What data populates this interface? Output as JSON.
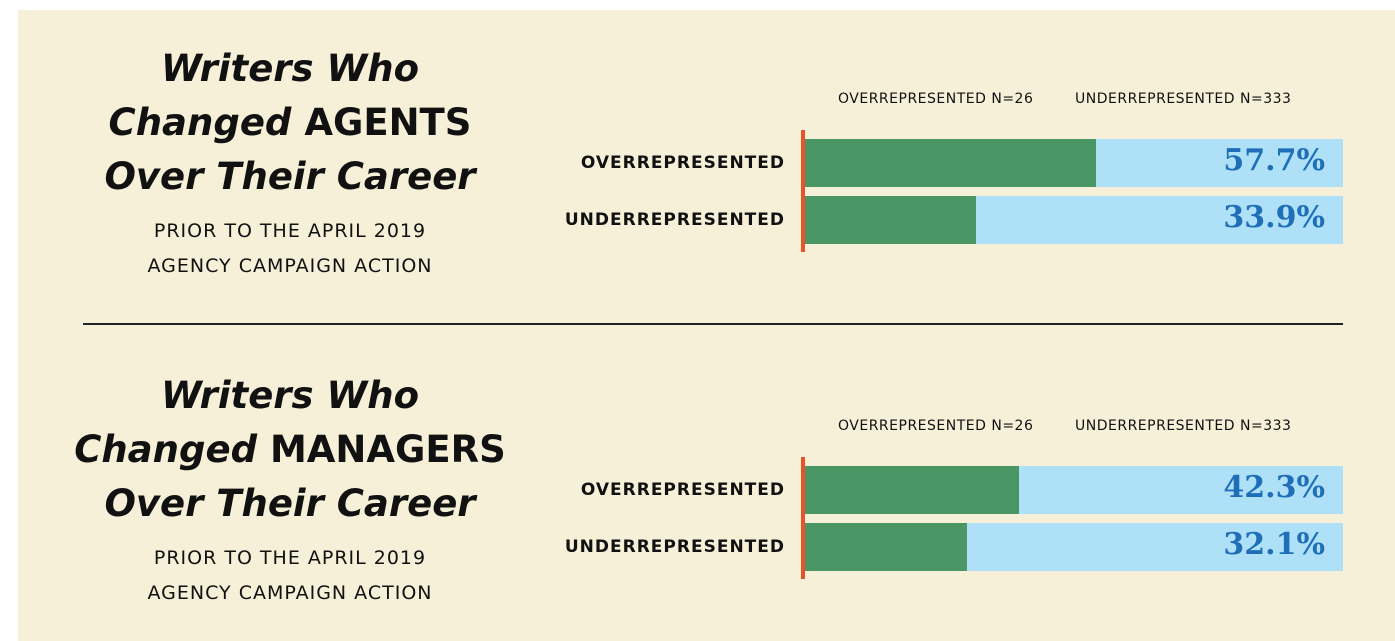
{
  "chart_data": [
    {
      "type": "hbar",
      "title": [
        "Writers Who",
        "Changed",
        "AGENTS",
        "Over Their Career"
      ],
      "subtitle": "PRIOR TO THE APRIL 2019 AGENCY CAMPAIGN ACTION",
      "annotations": [
        "OVERREPRESENTED N=26",
        "UNDERREPRESENTED N=333"
      ],
      "categories": [
        "OVERREPRESENTED",
        "UNDERREPRESENTED"
      ],
      "values": [
        57.7,
        33.9
      ],
      "value_labels": [
        "57.7%",
        "33.9%"
      ],
      "color": "#4a9665",
      "background_color": "#aee0f8",
      "label_color": "#1f6fb8",
      "axis_color": "#e8542a",
      "xlim": [
        0,
        106.5
      ]
    },
    {
      "type": "hbar",
      "title": [
        "Writers Who",
        "Changed",
        "MANAGERS",
        "Over Their Career"
      ],
      "subtitle": "PRIOR TO THE APRIL 2019 AGENCY CAMPAIGN ACTION",
      "annotations": [
        "OVERREPRESENTED N=26",
        "UNDERREPRESENTED N=333"
      ],
      "categories": [
        "OVERREPRESENTED",
        "UNDERREPRESENTED"
      ],
      "values": [
        42.3,
        32.1
      ],
      "value_labels": [
        "42.3%",
        "32.1%"
      ],
      "color": "#4a9665",
      "background_color": "#aee0f8",
      "label_color": "#1f6fb8",
      "axis_color": "#e8542a",
      "xlim": [
        0,
        106.5
      ]
    }
  ]
}
